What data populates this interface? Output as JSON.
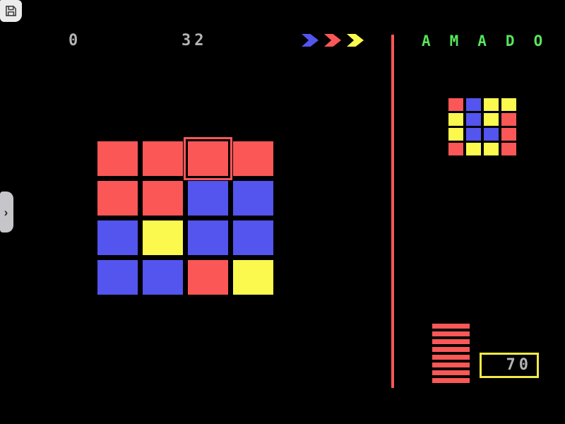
{
  "app": {
    "title": "AMADO"
  },
  "colors": {
    "red": "#fb5757",
    "blue": "#5454ee",
    "yellow": "#fbf84e",
    "green": "#57e65c",
    "text_gray": "#b4b4b4",
    "counter_border": "#f2ea45"
  },
  "toolbar": {
    "save_button": {
      "icon": "floppy-disk-icon"
    }
  },
  "drawer": {
    "handle": {
      "icon": "chevron-right-icon",
      "glyph": "›"
    }
  },
  "hud": {
    "left_value": "0",
    "right_value": "32",
    "color_sequence": [
      "blue",
      "red",
      "yellow"
    ]
  },
  "title": {
    "text": "AMADO"
  },
  "board": {
    "cursor": {
      "row": 0,
      "col": 2
    },
    "cells": [
      [
        "red",
        "red",
        "red",
        "red"
      ],
      [
        "red",
        "red",
        "blue",
        "blue"
      ],
      [
        "blue",
        "yellow",
        "blue",
        "blue"
      ],
      [
        "blue",
        "blue",
        "red",
        "yellow"
      ]
    ]
  },
  "target": {
    "cells": [
      [
        "red",
        "blue",
        "yellow",
        "yellow"
      ],
      [
        "yellow",
        "blue",
        "yellow",
        "red"
      ],
      [
        "yellow",
        "blue",
        "blue",
        "red"
      ],
      [
        "red",
        "yellow",
        "yellow",
        "red"
      ]
    ]
  },
  "gauge": {
    "stripes": 8
  },
  "counter": {
    "value": "70"
  }
}
